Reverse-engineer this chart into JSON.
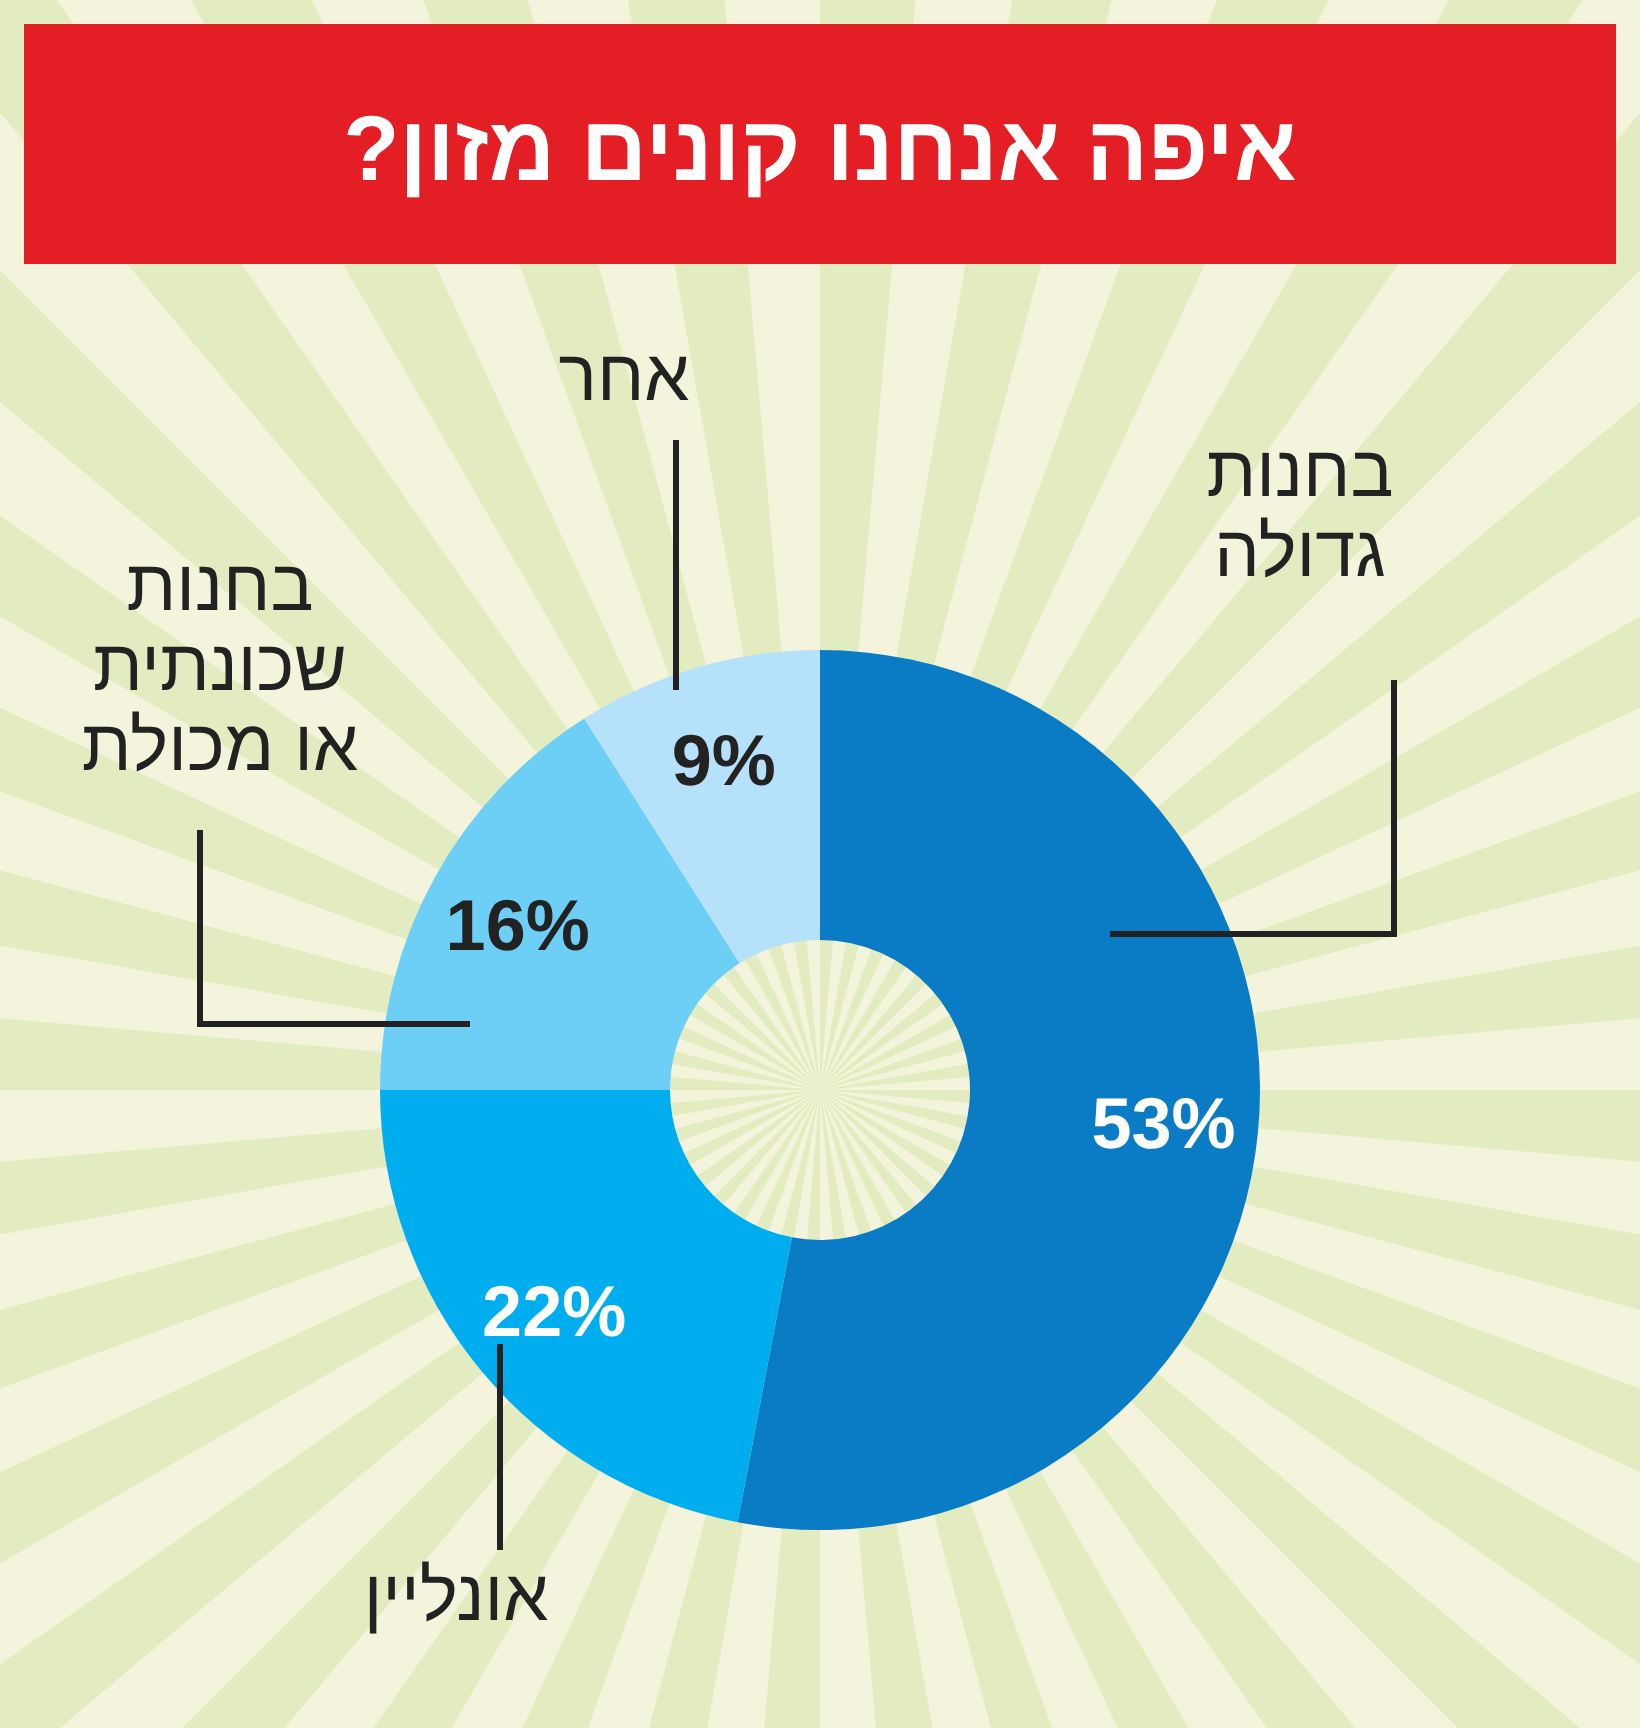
{
  "chart_data": {
    "type": "donut",
    "title": "איפה אנחנו קונים מזון?",
    "categories": [
      "בחנות\nגדולה",
      "אונליין",
      "בחנות\nשכונתית\nאו מכולת",
      "אחר"
    ],
    "values": [
      53,
      22,
      16,
      9
    ],
    "colors": [
      "#0a7cc6",
      "#00aeef",
      "#6dcff6",
      "#b5e1fa"
    ],
    "value_labels": [
      "53%",
      "22%",
      "16%",
      "9%"
    ]
  }
}
